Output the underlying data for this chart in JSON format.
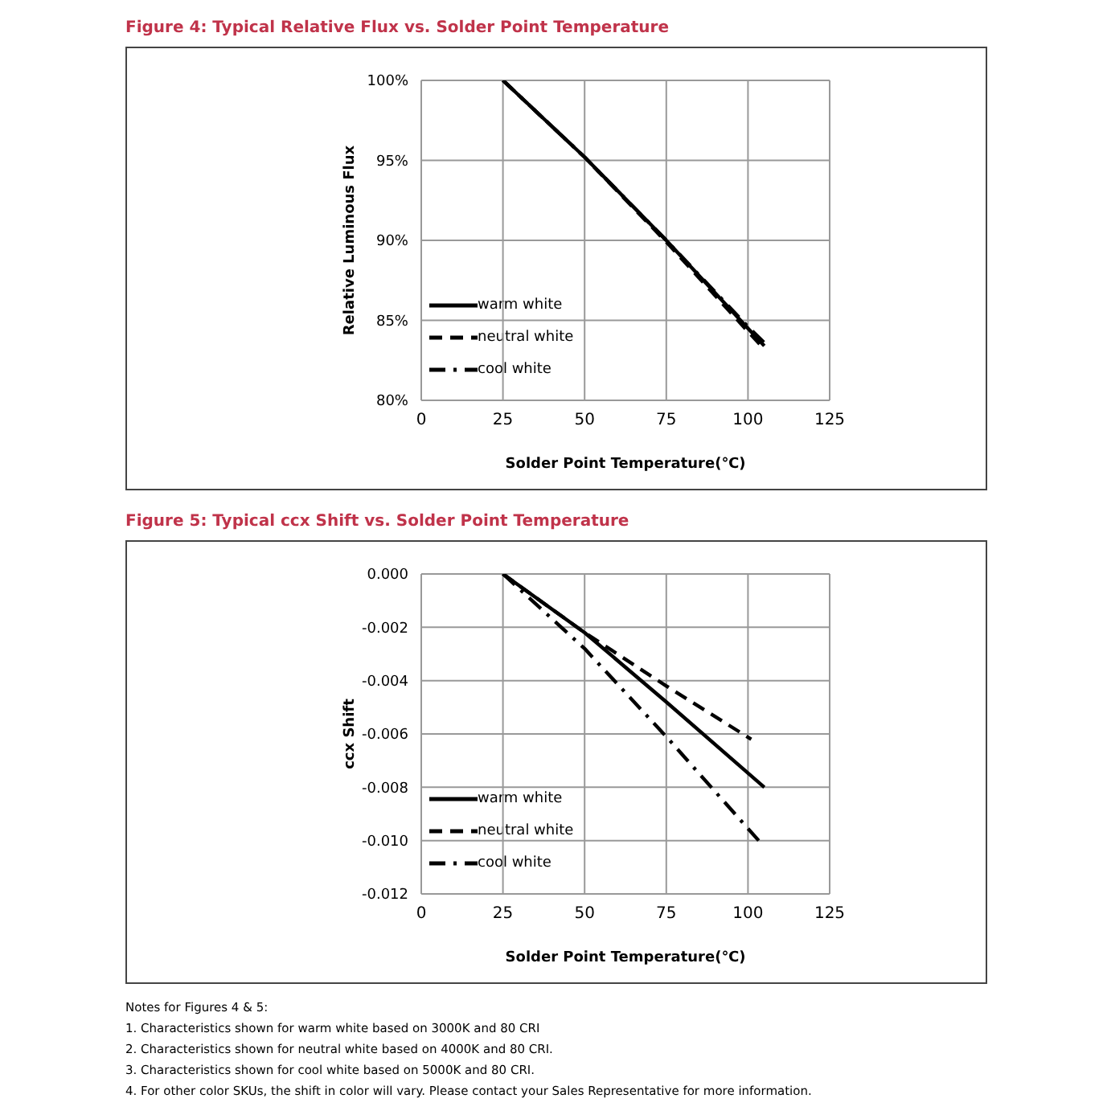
{
  "chart_data": [
    {
      "type": "line",
      "title": "Figure 4: Typical Relative Flux vs. Solder Point Temperature",
      "xlabel": "Solder Point Temperature(℃)",
      "ylabel": "Relative Luminous Flux",
      "xlim": [
        0,
        125
      ],
      "xticks": [
        0,
        25,
        50,
        75,
        100,
        125
      ],
      "ylim": [
        80,
        100
      ],
      "yticks": [
        {
          "value": 80,
          "label": "80%"
        },
        {
          "value": 85,
          "label": "85%"
        },
        {
          "value": 90,
          "label": "90%"
        },
        {
          "value": 95,
          "label": "95%"
        },
        {
          "value": 100,
          "label": "100%"
        }
      ],
      "grid": true,
      "legend": "bottom left",
      "marker": "none",
      "series": [
        {
          "name": "warm white",
          "color": "#000000",
          "line_style": "solid",
          "x": [
            25,
            50,
            75,
            100,
            105
          ],
          "values": [
            100,
            95.2,
            90,
            84.5,
            83.4
          ]
        },
        {
          "name": "neutral white",
          "color": "#000000",
          "line_style": "dashed",
          "x": [
            25,
            50,
            75,
            100,
            105
          ],
          "values": [
            100,
            95.2,
            89.9,
            84.3,
            83.2
          ]
        },
        {
          "name": "cool white",
          "color": "#000000",
          "line_style": "dashdot",
          "x": [
            25,
            50,
            75,
            100,
            105
          ],
          "values": [
            100,
            95.2,
            90,
            84.6,
            83.6
          ]
        }
      ]
    },
    {
      "type": "line",
      "title": "Figure 5: Typical ccx Shift vs. Solder Point Temperature",
      "xlabel": "Solder Point Temperature(℃)",
      "ylabel": "ccx Shift",
      "xlim": [
        0,
        125
      ],
      "xticks": [
        0,
        25,
        50,
        75,
        100,
        125
      ],
      "ylim": [
        -0.012,
        0
      ],
      "yticks": [
        {
          "value": -0.012,
          "label": "-0.012"
        },
        {
          "value": -0.01,
          "label": "-0.010"
        },
        {
          "value": -0.008,
          "label": "-0.008"
        },
        {
          "value": -0.006,
          "label": "-0.006"
        },
        {
          "value": -0.004,
          "label": "-0.004"
        },
        {
          "value": -0.002,
          "label": "-0.002"
        },
        {
          "value": 0,
          "label": "0.000"
        }
      ],
      "grid": true,
      "legend": "bottom left",
      "marker": "none",
      "series": [
        {
          "name": "warm white",
          "color": "#000000",
          "line_style": "solid",
          "x": [
            25,
            50,
            75,
            105
          ],
          "values": [
            0,
            -0.0022,
            -0.0048,
            -0.008
          ]
        },
        {
          "name": "neutral white",
          "color": "#000000",
          "line_style": "dashed",
          "x": [
            25,
            50,
            75,
            101
          ],
          "values": [
            0,
            -0.0022,
            -0.0042,
            -0.0062
          ]
        },
        {
          "name": "cool white",
          "color": "#000000",
          "line_style": "dashdot",
          "x": [
            25,
            50,
            75,
            104
          ],
          "values": [
            0,
            -0.0028,
            -0.0061,
            -0.0101
          ]
        }
      ],
      "annotations": [
        "Notes for Figures 4 & 5:",
        "1. Characteristics shown for warm white based on 3000K and 80 CRI",
        "2. Characteristics shown for neutral white based on 4000K and 80 CRI.",
        "3. Characteristics shown for cool white based on 5000K and 80 CRI.",
        "4. For other color SKUs, the shift in color will vary. Please contact your Sales Representative for more information."
      ]
    }
  ]
}
